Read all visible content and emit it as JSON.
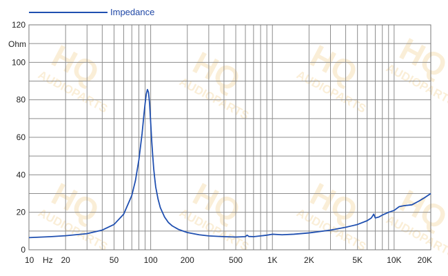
{
  "chart_data": {
    "type": "line",
    "xscale": "log",
    "xlim": [
      10,
      20000
    ],
    "ylim": [
      0,
      120
    ],
    "grid": true,
    "legend_position": "top-left",
    "ylabel": "Ohm",
    "xlabel": "Hz",
    "series": [
      {
        "name": "Impedance",
        "color": "#1f4fb0",
        "x": [
          10,
          15,
          20,
          30,
          40,
          50,
          60,
          70,
          75,
          80,
          85,
          88,
          90,
          92,
          94,
          96,
          98,
          100,
          102,
          104,
          106,
          108,
          110,
          115,
          120,
          130,
          140,
          150,
          170,
          200,
          250,
          300,
          400,
          500,
          600,
          620,
          640,
          700,
          800,
          900,
          1000,
          1200,
          1500,
          2000,
          3000,
          4000,
          5000,
          6000,
          6500,
          6800,
          7000,
          7500,
          8000,
          9000,
          10000,
          11000,
          12000,
          14000,
          16000,
          18000,
          20000
        ],
        "y": [
          6.5,
          7,
          7.5,
          8.6,
          10.5,
          13.5,
          19,
          29,
          37,
          48,
          62,
          72,
          78,
          83,
          85.5,
          84,
          78,
          68,
          58,
          50,
          43,
          38,
          33.5,
          27,
          22.5,
          17.5,
          14.5,
          12.8,
          10.8,
          9.2,
          8,
          7.4,
          7,
          6.8,
          7,
          7.8,
          7.1,
          7,
          7.4,
          7.8,
          8.3,
          8,
          8.3,
          9,
          10.5,
          12,
          13.5,
          15.5,
          17,
          19,
          17,
          17.5,
          18.5,
          20,
          21,
          23,
          23.5,
          24,
          26,
          28,
          30
        ]
      }
    ],
    "x_ticks": [
      {
        "value": 10,
        "label": "10"
      },
      {
        "value": 20,
        "label": "20"
      },
      {
        "value": 50,
        "label": "50"
      },
      {
        "value": 100,
        "label": "100"
      },
      {
        "value": 200,
        "label": "200"
      },
      {
        "value": 500,
        "label": "500"
      },
      {
        "value": 1000,
        "label": "1K"
      },
      {
        "value": 2000,
        "label": "2K"
      },
      {
        "value": 5000,
        "label": "5K"
      },
      {
        "value": 10000,
        "label": "10K"
      },
      {
        "value": 20000,
        "label": "20K"
      }
    ],
    "y_ticks": [
      {
        "value": 0,
        "label": "0"
      },
      {
        "value": 20,
        "label": "20"
      },
      {
        "value": 40,
        "label": "40"
      },
      {
        "value": 60,
        "label": "60"
      },
      {
        "value": 80,
        "label": "80"
      },
      {
        "value": 100,
        "label": "100"
      },
      {
        "value": 120,
        "label": "120"
      }
    ]
  },
  "watermark": {
    "logo_text": "HQ",
    "sub_text": "AUDIOPARTS",
    "color": "#f2cf8f"
  }
}
